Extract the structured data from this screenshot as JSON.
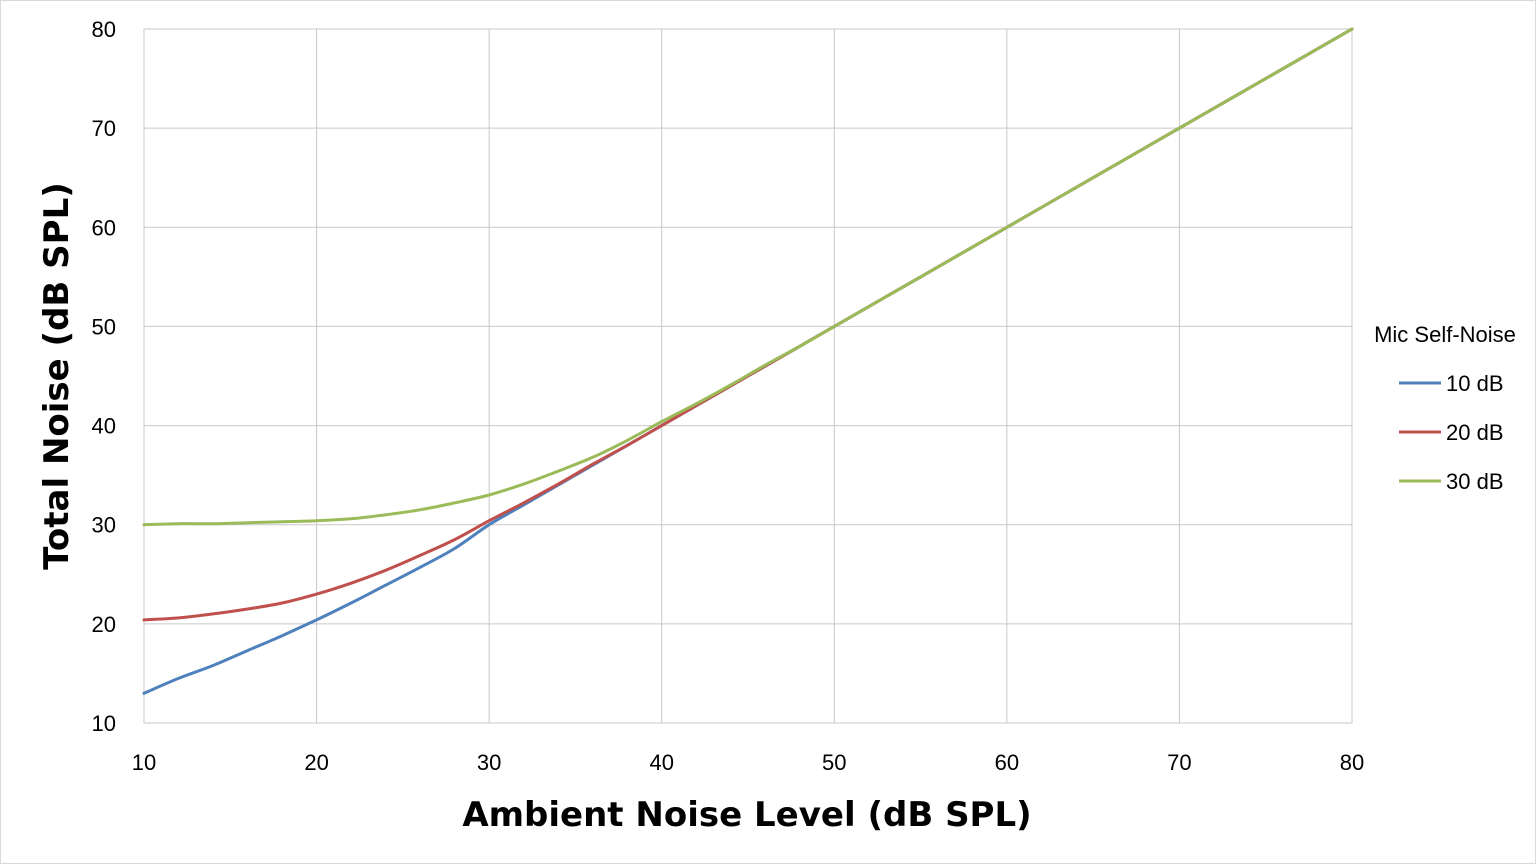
{
  "chart_data": {
    "type": "line",
    "xlabel": "Ambient Noise Level (dB SPL)",
    "ylabel": "Total Noise (dB SPL)",
    "xlim": [
      10,
      80
    ],
    "ylim": [
      10,
      80
    ],
    "xticks": [
      10,
      20,
      30,
      40,
      50,
      60,
      70,
      80
    ],
    "yticks": [
      10,
      20,
      30,
      40,
      50,
      60,
      70,
      80
    ],
    "grid": true,
    "legend": {
      "title": "Mic Self-Noise",
      "placement": "right"
    },
    "x": [
      10,
      12,
      14,
      16,
      18,
      20,
      22,
      24,
      26,
      28,
      30,
      32,
      34,
      36,
      38,
      40,
      42,
      44,
      46,
      48,
      50,
      55,
      60,
      65,
      70,
      75,
      80
    ],
    "series": [
      {
        "name": "10 dB",
        "color": "#4f81bd",
        "values": [
          13.0,
          14.5,
          15.8,
          17.3,
          18.8,
          20.4,
          22.1,
          23.9,
          25.7,
          27.6,
          30.0,
          32.0,
          34.0,
          36.0,
          38.0,
          40.0,
          42.0,
          44.0,
          46.0,
          48.0,
          50.0,
          55.0,
          60.0,
          65.0,
          70.0,
          75.0,
          80.0
        ]
      },
      {
        "name": "20 dB",
        "color": "#c0504d",
        "values": [
          20.4,
          20.6,
          21.0,
          21.5,
          22.1,
          23.0,
          24.1,
          25.4,
          26.9,
          28.5,
          30.4,
          32.2,
          34.1,
          36.1,
          38.0,
          40.0,
          42.0,
          44.0,
          46.0,
          48.0,
          50.0,
          55.0,
          60.0,
          65.0,
          70.0,
          75.0,
          80.0
        ]
      },
      {
        "name": "30 dB",
        "color": "#9bbb59",
        "values": [
          30.0,
          30.1,
          30.1,
          30.2,
          30.3,
          30.4,
          30.6,
          31.0,
          31.5,
          32.2,
          33.0,
          34.1,
          35.4,
          36.8,
          38.5,
          40.4,
          42.2,
          44.1,
          46.1,
          48.0,
          50.0,
          55.0,
          60.0,
          65.0,
          70.0,
          75.0,
          80.0
        ]
      }
    ]
  }
}
